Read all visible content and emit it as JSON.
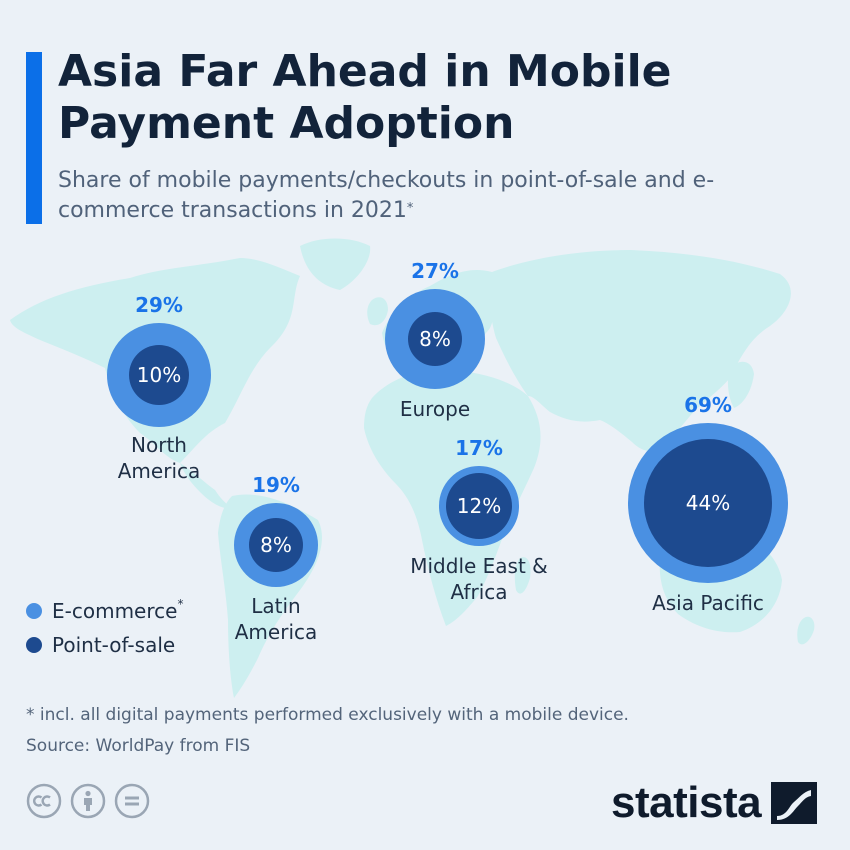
{
  "title": "Asia Far Ahead in Mobile Payment Adoption",
  "subtitle": "Share of mobile payments/checkouts in point-of-sale and e-commerce transactions in 2021",
  "subtitle_marker": "*",
  "colors": {
    "accent": "#0b6fe8",
    "ecommerce": "#4a90e2",
    "point_of_sale": "#1d4a8f",
    "ecommerce_label": "#1a73e8",
    "map": "#cdeff0",
    "background": "#ebf1f7"
  },
  "legend": {
    "ecommerce": "E-commerce",
    "ecommerce_marker": "*",
    "point_of_sale": "Point-of-sale"
  },
  "chart_data": {
    "type": "bubble-map",
    "series": [
      {
        "name": "E-commerce",
        "values": [
          29,
          27,
          19,
          17,
          69
        ]
      },
      {
        "name": "Point-of-sale",
        "values": [
          10,
          8,
          8,
          12,
          44
        ]
      }
    ],
    "categories": [
      "North America",
      "Europe",
      "Latin America",
      "Middle East & Africa",
      "Asia Pacific"
    ],
    "regions": [
      {
        "name": "North\nAmerica",
        "ecommerce": 29,
        "ecommerce_label": "29%",
        "pos": 10,
        "pos_label": "10%"
      },
      {
        "name": "Europe",
        "ecommerce": 27,
        "ecommerce_label": "27%",
        "pos": 8,
        "pos_label": "8%"
      },
      {
        "name": "Latin\nAmerica",
        "ecommerce": 19,
        "ecommerce_label": "19%",
        "pos": 8,
        "pos_label": "8%"
      },
      {
        "name": "Middle East &\nAfrica",
        "ecommerce": 17,
        "ecommerce_label": "17%",
        "pos": 12,
        "pos_label": "12%"
      },
      {
        "name": "Asia Pacific",
        "ecommerce": 69,
        "ecommerce_label": "69%",
        "pos": 44,
        "pos_label": "44%"
      }
    ]
  },
  "footnote": "* incl. all digital payments performed exclusively with a mobile device.",
  "source": "Source: WorldPay from FIS",
  "brand": "statista",
  "icons": [
    "cc-icon",
    "by-icon",
    "nd-icon",
    "statista-logo-icon"
  ]
}
